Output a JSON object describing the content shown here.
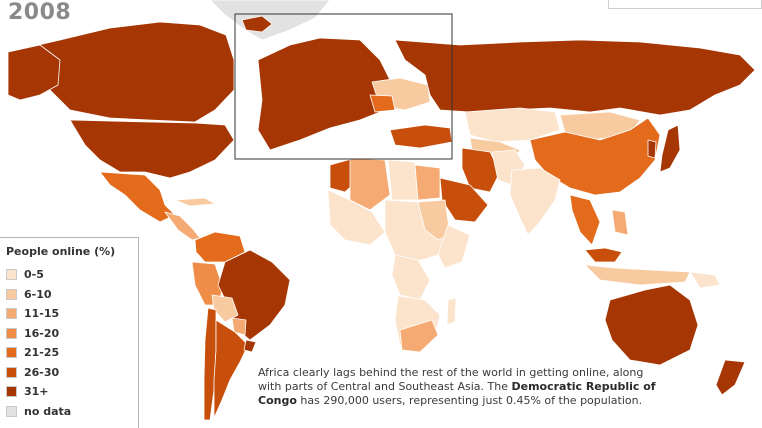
{
  "title": {
    "year": "2008"
  },
  "legend": {
    "title": "People online (%)",
    "items": [
      {
        "label": "0-5",
        "color": "#fbe3cc"
      },
      {
        "label": "6-10",
        "color": "#f8caa0"
      },
      {
        "label": "11-15",
        "color": "#f4aa72"
      },
      {
        "label": "16-20",
        "color": "#ee8c48"
      },
      {
        "label": "21-25",
        "color": "#e46a1c"
      },
      {
        "label": "26-30",
        "color": "#c84e0b"
      },
      {
        "label": "31+",
        "color": "#a63603"
      },
      {
        "label": "no data",
        "color": "#e2e2e2"
      }
    ]
  },
  "caption": {
    "part1": "Africa clearly lags behind the rest of the world in getting online, along with parts of Central and Southeast Asia. The ",
    "highlight": "Democratic Republic of Congo",
    "part2": " has 290,000 users, representing just 0.45% of the population."
  },
  "colors": {
    "ocean": "#ffffff",
    "border": "#ffffff",
    "inset_frame": "#333333"
  }
}
